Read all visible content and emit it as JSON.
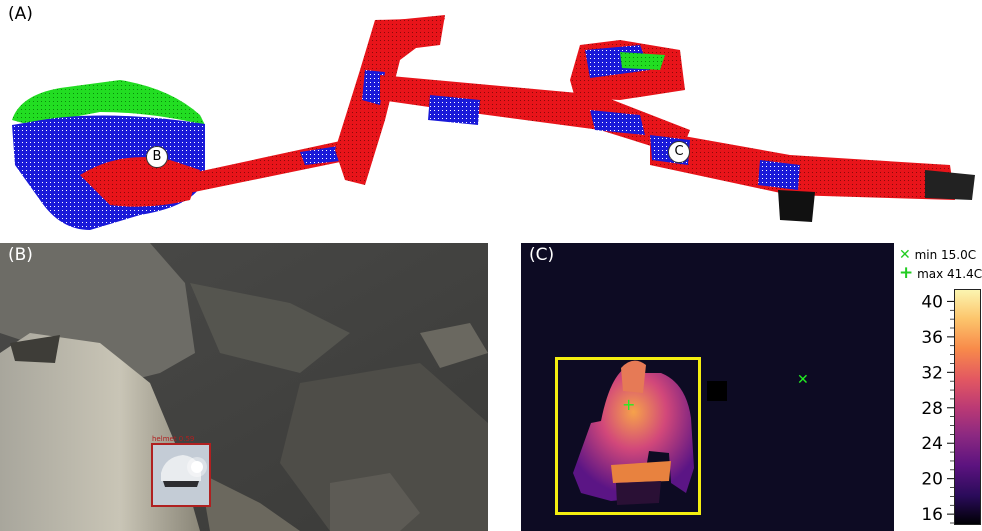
{
  "panels": {
    "a": {
      "label": "(A)",
      "marker_b": "B",
      "marker_c": "C"
    },
    "b": {
      "label": "(B)",
      "detection_label": "helmet 0.59"
    },
    "c": {
      "label": "(C)"
    }
  },
  "legend": {
    "min_symbol": "✕",
    "min_text": "min 15.0C",
    "max_symbol": "+",
    "max_text": "max 41.4C"
  },
  "colorbar": {
    "ticks": [
      "40",
      "36",
      "32",
      "28",
      "24",
      "20",
      "16"
    ],
    "range": [
      15.0,
      41.4
    ]
  },
  "colors": {
    "point_red": "#e8141a",
    "point_blue": "#1a1ad8",
    "point_green": "#22dd22",
    "bbox_yellow": "#f4ee10",
    "detection_red": "#b02020",
    "marker_green": "#22ee22"
  }
}
